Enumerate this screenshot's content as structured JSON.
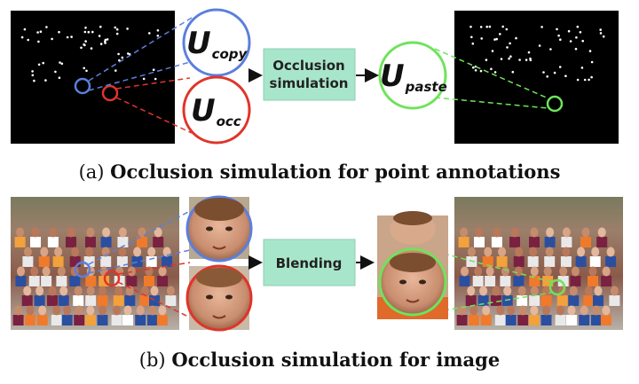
{
  "row_a": {
    "symbol_main": "U",
    "copy_sub": "copy",
    "occ_sub": "occ",
    "paste_sub": "paste",
    "process_line1": "Occlusion",
    "process_line2": "simulation",
    "caption_tag": "(a)",
    "caption_text": "Occlusion simulation for point annotations"
  },
  "row_b": {
    "process_label": "Blending",
    "caption_tag": "(b)",
    "caption_text": "Occlusion simulation for image"
  },
  "colors": {
    "copy_circle": "#5b7fdc",
    "occ_circle": "#e0342a",
    "paste_circle": "#6fe35a",
    "process_box": "#a8e6cc",
    "panel_black": "#000000"
  }
}
